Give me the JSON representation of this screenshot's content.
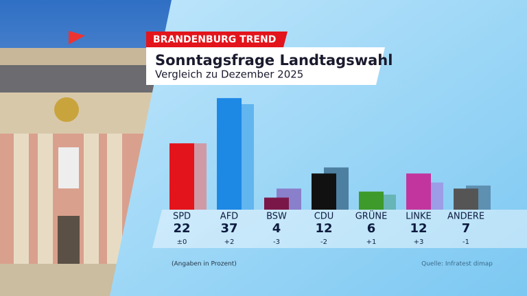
{
  "chart_data": {
    "type": "bar",
    "tag": "BRANDENBURG TREND",
    "title": "Sonntagsfrage Landtagswahl",
    "subtitle": "Vergleich zu Dezember 2025",
    "categories": [
      "SPD",
      "AFD",
      "BSW",
      "CDU",
      "GRÜNE",
      "LINKE",
      "ANDERE"
    ],
    "values": [
      22,
      37,
      4,
      12,
      6,
      12,
      7
    ],
    "colors": [
      "#e3141b",
      "#1e88e5",
      "#7b1748",
      "#111111",
      "#3e9a2b",
      "#c2359e",
      "#555555"
    ],
    "changes": [
      "±0",
      "+2",
      "-3",
      "-2",
      "+1",
      "+3",
      "-1"
    ],
    "previous_values": [
      22,
      35,
      7,
      14,
      5,
      9,
      8
    ],
    "previous_colors": [
      "#cf9aa6",
      "#62b6ef",
      "#8a7fcb",
      "#4d7fa0",
      "#67b5b6",
      "#9c9de6",
      "#5e90b2"
    ],
    "note": "(Angaben in Prozent)",
    "source": "Quelle: Infratest dimap"
  }
}
